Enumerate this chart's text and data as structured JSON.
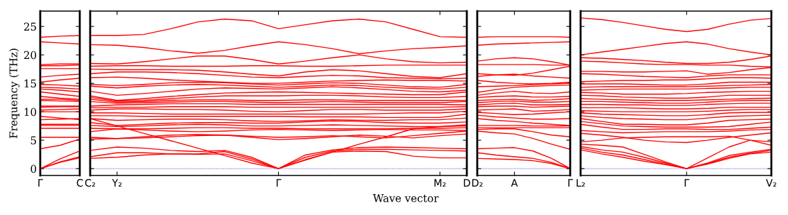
{
  "chart_data": [
    {
      "type": "line",
      "ylabel": "Frequency (THz)",
      "categories": [
        "Γ",
        null,
        "C"
      ],
      "ylim": [
        -1.2,
        27.7
      ],
      "yticks": [
        0,
        5,
        10,
        15,
        20,
        25
      ],
      "grid": false,
      "ref_lines": [
        {
          "axis": "y",
          "value": 0,
          "color": "#0000ff",
          "line_style": "dotted"
        }
      ],
      "series": [
        {
          "color": "#ff0000",
          "values": [
            23.1,
            23.3,
            23.4
          ]
        },
        {
          "color": "#ff0000",
          "values": [
            22.3,
            22.1,
            21.9
          ]
        },
        {
          "color": "#ff0000",
          "values": [
            18.3,
            18.4,
            18.4
          ]
        },
        {
          "color": "#ff0000",
          "values": [
            18.1,
            18.1,
            18.2
          ]
        },
        {
          "color": "#ff0000",
          "values": [
            17.6,
            17.6,
            17.6
          ]
        },
        {
          "color": "#ff0000",
          "values": [
            16.1,
            16.4,
            16.6
          ]
        },
        {
          "color": "#ff0000",
          "values": [
            15.2,
            15.6,
            15.9
          ]
        },
        {
          "color": "#ff0000",
          "values": [
            14.8,
            14.7,
            14.5
          ]
        },
        {
          "color": "#ff0000",
          "values": [
            14.3,
            14.2,
            14.0
          ]
        },
        {
          "color": "#ff0000",
          "values": [
            14.0,
            13.8,
            13.5
          ]
        },
        {
          "color": "#ff0000",
          "values": [
            13.5,
            13.1,
            12.7
          ]
        },
        {
          "color": "#ff0000",
          "values": [
            12.7,
            12.4,
            12.2
          ]
        },
        {
          "color": "#ff0000",
          "values": [
            12.2,
            12.2,
            12.0
          ]
        },
        {
          "color": "#ff0000",
          "values": [
            12.0,
            11.9,
            11.8
          ]
        },
        {
          "color": "#ff0000",
          "values": [
            11.0,
            11.0,
            11.0
          ]
        },
        {
          "color": "#ff0000",
          "values": [
            10.8,
            10.9,
            10.9
          ]
        },
        {
          "color": "#ff0000",
          "values": [
            10.3,
            10.4,
            10.5
          ]
        },
        {
          "color": "#ff0000",
          "values": [
            10.0,
            10.0,
            10.0
          ]
        },
        {
          "color": "#ff0000",
          "values": [
            9.2,
            8.9,
            8.6
          ]
        },
        {
          "color": "#ff0000",
          "values": [
            8.6,
            8.7,
            8.8
          ]
        },
        {
          "color": "#ff0000",
          "values": [
            7.8,
            7.8,
            7.8
          ]
        },
        {
          "color": "#ff0000",
          "values": [
            7.6,
            7.6,
            7.6
          ]
        },
        {
          "color": "#ff0000",
          "values": [
            7.1,
            7.1,
            7.1
          ]
        },
        {
          "color": "#ff0000",
          "values": [
            5.5,
            5.5,
            5.5
          ]
        },
        {
          "color": "#ff0000",
          "values": [
            3.5,
            4.1,
            5.2
          ]
        },
        {
          "color": "#ff0000",
          "values": [
            0,
            1.7,
            3.1
          ]
        },
        {
          "color": "#ff0000",
          "values": [
            0,
            1.2,
            2.1
          ]
        },
        {
          "color": "#ff0000",
          "values": [
            0,
            1.1,
            1.9
          ]
        }
      ]
    },
    {
      "type": "line",
      "xlabel": "Wave vector",
      "categories": [
        "C₂",
        "Y₂",
        null,
        null,
        null,
        null,
        null,
        "Γ",
        null,
        null,
        null,
        null,
        null,
        "M₂",
        "D"
      ],
      "ylim": [
        -1.2,
        27.7
      ],
      "yticks": [
        0,
        5,
        10,
        15,
        20,
        25
      ],
      "tick_labels": "x",
      "grid": false,
      "ref_lines": [
        {
          "axis": "y",
          "value": 0,
          "color": "#0000ff",
          "line_style": "dotted"
        }
      ],
      "series": [
        {
          "color": "#ff0000",
          "values": [
            23.4,
            23.4,
            23.6,
            24.6,
            25.8,
            26.3,
            26.0,
            24.6,
            25.3,
            26.0,
            26.3,
            25.8,
            24.5,
            23.2,
            23.1
          ]
        },
        {
          "color": "#ff0000",
          "values": [
            21.8,
            21.7,
            21.3,
            20.7,
            20.3,
            20.8,
            21.6,
            22.3,
            21.8,
            21.1,
            20.2,
            20.7,
            21.1,
            21.3,
            21.6
          ]
        },
        {
          "color": "#ff0000",
          "values": [
            18.5,
            18.4,
            18.8,
            19.3,
            19.8,
            19.8,
            19.2,
            18.4,
            18.9,
            19.5,
            20.0,
            19.3,
            18.8,
            18.6,
            18.7
          ]
        },
        {
          "color": "#ff0000",
          "values": [
            18.0,
            18.1,
            18.1,
            18.0,
            18.0,
            18.0,
            18.1,
            18.1,
            18.0,
            18.0,
            18.1,
            18.2,
            18.2,
            18.2,
            18.2
          ]
        },
        {
          "color": "#ff0000",
          "values": [
            17.5,
            17.4,
            17.4,
            17.4,
            17.3,
            17.0,
            16.6,
            16.3,
            17.0,
            17.4,
            17.2,
            16.7,
            16.2,
            16.0,
            16.7
          ]
        },
        {
          "color": "#ff0000",
          "values": [
            16.7,
            17.0,
            17.0,
            16.9,
            16.7,
            16.4,
            16.1,
            16.0,
            16.2,
            16.4,
            16.3,
            16.0,
            15.9,
            15.8,
            15.9
          ]
        },
        {
          "color": "#ff0000",
          "values": [
            16.0,
            16.1,
            15.9,
            15.6,
            15.4,
            15.2,
            15.0,
            15.0,
            15.2,
            15.4,
            15.5,
            15.6,
            15.5,
            15.5,
            15.4
          ]
        },
        {
          "color": "#ff0000",
          "values": [
            14.8,
            14.6,
            14.8,
            15.1,
            15.2,
            15.1,
            14.9,
            14.7,
            14.9,
            15.1,
            15.0,
            14.7,
            14.4,
            14.3,
            14.8
          ]
        },
        {
          "color": "#ff0000",
          "values": [
            14.5,
            14.2,
            14.5,
            14.7,
            14.8,
            14.7,
            14.5,
            14.3,
            14.5,
            14.7,
            14.6,
            14.3,
            14.1,
            14.0,
            14.3
          ]
        },
        {
          "color": "#ff0000",
          "values": [
            13.6,
            12.9,
            13.2,
            13.6,
            14.0,
            14.2,
            14.1,
            14.0,
            14.2,
            14.4,
            14.2,
            13.9,
            13.6,
            13.5,
            13.8
          ]
        },
        {
          "color": "#ff0000",
          "values": [
            12.8,
            12.0,
            12.3,
            12.7,
            13.0,
            13.3,
            13.4,
            13.5,
            13.4,
            13.3,
            13.2,
            13.1,
            13.0,
            13.0,
            13.5
          ]
        },
        {
          "color": "#ff0000",
          "values": [
            12.5,
            11.9,
            12.0,
            12.3,
            12.6,
            12.8,
            12.8,
            12.8,
            12.9,
            12.9,
            12.8,
            12.6,
            12.5,
            12.5,
            12.7
          ]
        },
        {
          "color": "#ff0000",
          "values": [
            12.2,
            11.7,
            11.8,
            12.0,
            12.1,
            12.1,
            12.0,
            12.0,
            12.1,
            12.1,
            12.0,
            12.0,
            12.0,
            12.0,
            12.0
          ]
        },
        {
          "color": "#ff0000",
          "values": [
            11.8,
            11.5,
            11.6,
            11.7,
            11.8,
            11.8,
            11.7,
            11.6,
            11.7,
            11.8,
            11.7,
            11.6,
            11.6,
            11.6,
            11.8
          ]
        },
        {
          "color": "#ff0000",
          "values": [
            11.0,
            11.2,
            11.3,
            11.4,
            11.4,
            11.4,
            11.3,
            11.3,
            11.3,
            11.3,
            11.3,
            11.3,
            11.3,
            11.3,
            11.2
          ]
        },
        {
          "color": "#ff0000",
          "values": [
            10.7,
            10.8,
            10.8,
            10.9,
            10.9,
            10.9,
            10.8,
            10.8,
            10.8,
            10.8,
            10.8,
            10.8,
            10.8,
            10.8,
            10.9
          ]
        },
        {
          "color": "#ff0000",
          "values": [
            10.3,
            10.5,
            10.5,
            10.4,
            10.4,
            10.3,
            10.1,
            10.0,
            10.2,
            10.4,
            10.4,
            10.3,
            10.3,
            10.3,
            10.5
          ]
        },
        {
          "color": "#ff0000",
          "values": [
            9.8,
            9.8,
            9.7,
            9.6,
            9.6,
            9.6,
            9.6,
            9.6,
            9.6,
            9.6,
            9.6,
            9.7,
            9.8,
            9.8,
            10.1
          ]
        },
        {
          "color": "#ff0000",
          "values": [
            9.3,
            9.3,
            9.2,
            9.2,
            9.2,
            9.2,
            9.2,
            9.2,
            9.1,
            9.1,
            9.1,
            9.0,
            9.0,
            9.0,
            9.6
          ]
        },
        {
          "color": "#ff0000",
          "values": [
            8.8,
            8.5,
            8.6,
            8.7,
            8.7,
            8.6,
            8.4,
            8.3,
            8.4,
            8.6,
            8.5,
            8.5,
            8.6,
            8.6,
            8.9
          ]
        },
        {
          "color": "#ff0000",
          "values": [
            8.1,
            7.6,
            7.8,
            8.0,
            8.1,
            8.1,
            8.0,
            8.0,
            8.2,
            8.4,
            8.3,
            8.1,
            8.0,
            8.0,
            8.2
          ]
        },
        {
          "color": "#ff0000",
          "values": [
            7.6,
            7.4,
            7.5,
            7.7,
            7.8,
            7.7,
            7.5,
            7.5,
            7.6,
            7.7,
            7.6,
            7.5,
            7.4,
            7.4,
            7.5
          ]
        },
        {
          "color": "#ff0000",
          "values": [
            7.1,
            7.0,
            7.0,
            7.1,
            7.2,
            7.2,
            7.1,
            7.1,
            7.0,
            7.0,
            7.0,
            7.0,
            7.1,
            7.1,
            7.2
          ]
        },
        {
          "color": "#ff0000",
          "values": [
            6.5,
            7.0,
            6.8,
            6.6,
            6.5,
            6.6,
            6.8,
            6.9,
            6.8,
            6.7,
            6.8,
            6.9,
            6.8,
            6.8,
            6.7
          ]
        },
        {
          "color": "#ff0000",
          "values": [
            5.5,
            5.3,
            5.4,
            5.6,
            5.8,
            5.9,
            5.7,
            5.5,
            5.6,
            5.8,
            5.6,
            5.4,
            5.8,
            6.2,
            6.6
          ]
        },
        {
          "color": "#ff0000",
          "values": [
            5.2,
            5.3,
            5.6,
            5.9,
            6.0,
            5.9,
            5.5,
            5.1,
            5.3,
            5.6,
            5.9,
            5.7,
            5.4,
            5.8,
            6.1
          ]
        },
        {
          "color": "#ff0000",
          "values": [
            8.8,
            7.5,
            6.2,
            4.9,
            3.6,
            2.3,
            1.0,
            0,
            1.5,
            2.9,
            4.3,
            5.6,
            7.0,
            7.4,
            7.7
          ]
        },
        {
          "color": "#ff0000",
          "values": [
            3.2,
            3.8,
            3.6,
            3.2,
            3.0,
            3.2,
            2.0,
            0,
            2.4,
            3.3,
            3.7,
            3.8,
            3.7,
            3.6,
            3.5
          ]
        },
        {
          "color": "#ff0000",
          "values": [
            2.1,
            2.8,
            2.8,
            2.6,
            2.6,
            3.0,
            1.7,
            0,
            2.0,
            3.1,
            3.4,
            3.4,
            3.3,
            3.2,
            3.1
          ]
        },
        {
          "color": "#ff0000",
          "values": [
            1.8,
            2.0,
            2.4,
            2.6,
            2.5,
            2.6,
            1.4,
            0,
            1.6,
            2.9,
            3.1,
            3.0,
            2.2,
            1.9,
            1.9
          ]
        }
      ]
    },
    {
      "type": "line",
      "categories": [
        "D₂",
        null,
        "A",
        null,
        null,
        "Γ"
      ],
      "ylim": [
        -1.2,
        27.7
      ],
      "yticks": [
        0,
        5,
        10,
        15,
        20,
        25
      ],
      "tick_labels": "x",
      "grid": false,
      "ref_lines": [
        {
          "axis": "y",
          "value": 0,
          "color": "#0000ff",
          "line_style": "dotted"
        }
      ],
      "series": [
        {
          "color": "#ff0000",
          "values": [
            23.1,
            23.2,
            23.2,
            23.2,
            23.2,
            23.1
          ]
        },
        {
          "color": "#ff0000",
          "values": [
            21.7,
            21.9,
            22.0,
            22.1,
            22.2,
            22.3
          ]
        },
        {
          "color": "#ff0000",
          "values": [
            18.9,
            19.3,
            19.5,
            19.3,
            18.8,
            18.2
          ]
        },
        {
          "color": "#ff0000",
          "values": [
            18.3,
            18.3,
            18.3,
            18.3,
            18.2,
            18.2
          ]
        },
        {
          "color": "#ff0000",
          "values": [
            16.7,
            16.5,
            16.4,
            16.8,
            17.4,
            18.0
          ]
        },
        {
          "color": "#ff0000",
          "values": [
            16.2,
            16.5,
            16.6,
            16.3,
            16.1,
            15.9
          ]
        },
        {
          "color": "#ff0000",
          "values": [
            15.5,
            15.2,
            15.0,
            14.9,
            15.0,
            15.2
          ]
        },
        {
          "color": "#ff0000",
          "values": [
            14.4,
            14.5,
            14.6,
            14.8,
            14.9,
            15.0
          ]
        },
        {
          "color": "#ff0000",
          "values": [
            13.4,
            13.9,
            14.3,
            14.5,
            14.6,
            14.7
          ]
        },
        {
          "color": "#ff0000",
          "values": [
            12.9,
            13.3,
            13.6,
            13.3,
            13.2,
            13.5
          ]
        },
        {
          "color": "#ff0000",
          "values": [
            12.5,
            12.7,
            12.8,
            12.6,
            12.6,
            12.7
          ]
        },
        {
          "color": "#ff0000",
          "values": [
            12.0,
            12.1,
            12.2,
            12.0,
            12.1,
            12.3
          ]
        },
        {
          "color": "#ff0000",
          "values": [
            11.6,
            11.8,
            11.9,
            11.7,
            11.7,
            11.8
          ]
        },
        {
          "color": "#ff0000",
          "values": [
            11.2,
            11.4,
            11.5,
            11.2,
            11.2,
            11.3
          ]
        },
        {
          "color": "#ff0000",
          "values": [
            10.9,
            11.0,
            11.0,
            10.8,
            10.9,
            11.0
          ]
        },
        {
          "color": "#ff0000",
          "values": [
            10.3,
            10.4,
            10.5,
            10.1,
            10.2,
            10.4
          ]
        },
        {
          "color": "#ff0000",
          "values": [
            9.9,
            9.7,
            9.5,
            9.6,
            9.8,
            10.0
          ]
        },
        {
          "color": "#ff0000",
          "values": [
            9.4,
            9.1,
            8.9,
            8.7,
            8.7,
            8.8
          ]
        },
        {
          "color": "#ff0000",
          "values": [
            8.8,
            8.5,
            8.3,
            8.0,
            7.8,
            7.6
          ]
        },
        {
          "color": "#ff0000",
          "values": [
            7.6,
            7.6,
            7.6,
            7.5,
            7.5,
            7.5
          ]
        },
        {
          "color": "#ff0000",
          "values": [
            7.2,
            7.2,
            7.2,
            7.2,
            7.2,
            7.2
          ]
        },
        {
          "color": "#ff0000",
          "values": [
            6.9,
            7.0,
            7.0,
            6.5,
            5.9,
            5.6
          ]
        },
        {
          "color": "#ff0000",
          "values": [
            6.6,
            6.3,
            6.1,
            5.3,
            4.3,
            3.4
          ]
        },
        {
          "color": "#ff0000",
          "values": [
            3.5,
            3.6,
            3.7,
            3.1,
            1.8,
            0
          ]
        },
        {
          "color": "#ff0000",
          "values": [
            2.8,
            2.4,
            2.1,
            1.8,
            1.1,
            0
          ]
        },
        {
          "color": "#ff0000",
          "values": [
            1.8,
            1.7,
            1.6,
            1.4,
            0.9,
            0
          ]
        }
      ]
    },
    {
      "type": "line",
      "categories": [
        "L₂",
        null,
        null,
        null,
        null,
        "Γ",
        null,
        null,
        null,
        "V₂"
      ],
      "ylim": [
        -1.2,
        27.7
      ],
      "yticks": [
        0,
        5,
        10,
        15,
        20,
        25
      ],
      "tick_labels": "x",
      "grid": false,
      "ref_lines": [
        {
          "axis": "y",
          "value": 0,
          "color": "#0000ff",
          "line_style": "dotted"
        }
      ],
      "series": [
        {
          "color": "#ff0000",
          "values": [
            26.5,
            26.2,
            25.7,
            25.1,
            24.5,
            24.1,
            24.5,
            25.4,
            26.1,
            26.4
          ]
        },
        {
          "color": "#ff0000",
          "values": [
            20.0,
            20.5,
            21.0,
            21.5,
            22.0,
            22.3,
            21.9,
            21.1,
            20.5,
            20.0
          ]
        },
        {
          "color": "#ff0000",
          "values": [
            19.5,
            19.4,
            19.2,
            19.0,
            18.7,
            18.5,
            18.5,
            18.7,
            19.2,
            19.8
          ]
        },
        {
          "color": "#ff0000",
          "values": [
            18.9,
            18.8,
            18.6,
            18.4,
            18.3,
            18.3,
            18.2,
            18.2,
            18.0,
            17.9
          ]
        },
        {
          "color": "#ff0000",
          "values": [
            17.1,
            17.1,
            17.0,
            17.0,
            17.1,
            17.2,
            16.6,
            16.9,
            17.4,
            17.8
          ]
        },
        {
          "color": "#ff0000",
          "values": [
            16.7,
            16.6,
            16.4,
            16.2,
            16.1,
            16.0,
            16.3,
            16.5,
            16.5,
            16.5
          ]
        },
        {
          "color": "#ff0000",
          "values": [
            15.3,
            15.4,
            15.5,
            15.5,
            15.6,
            15.6,
            15.8,
            16.0,
            16.0,
            15.9
          ]
        },
        {
          "color": "#ff0000",
          "values": [
            14.9,
            14.9,
            14.9,
            14.8,
            14.7,
            14.7,
            14.9,
            15.2,
            15.2,
            15.2
          ]
        },
        {
          "color": "#ff0000",
          "values": [
            14.3,
            14.4,
            14.4,
            14.4,
            14.4,
            14.4,
            14.5,
            14.6,
            14.7,
            14.8
          ]
        },
        {
          "color": "#ff0000",
          "values": [
            13.8,
            13.9,
            14.0,
            14.0,
            14.0,
            14.0,
            14.1,
            14.2,
            14.3,
            14.3
          ]
        },
        {
          "color": "#ff0000",
          "values": [
            13.4,
            13.3,
            13.1,
            13.1,
            13.1,
            13.2,
            13.4,
            13.5,
            13.6,
            13.6
          ]
        },
        {
          "color": "#ff0000",
          "values": [
            12.9,
            12.8,
            12.6,
            12.5,
            12.4,
            12.4,
            12.6,
            12.9,
            12.9,
            12.9
          ]
        },
        {
          "color": "#ff0000",
          "values": [
            12.3,
            12.2,
            12.1,
            12.0,
            12.0,
            12.0,
            12.1,
            12.2,
            12.3,
            12.4
          ]
        },
        {
          "color": "#ff0000",
          "values": [
            11.8,
            11.8,
            11.7,
            11.6,
            11.5,
            11.5,
            11.7,
            11.9,
            12.0,
            12.0
          ]
        },
        {
          "color": "#ff0000",
          "values": [
            11.3,
            11.3,
            11.2,
            11.2,
            11.1,
            11.1,
            11.3,
            11.4,
            11.5,
            11.5
          ]
        },
        {
          "color": "#ff0000",
          "values": [
            10.7,
            10.7,
            10.7,
            10.6,
            10.5,
            10.5,
            10.6,
            10.8,
            10.8,
            10.8
          ]
        },
        {
          "color": "#ff0000",
          "values": [
            10.2,
            10.1,
            10.0,
            10.0,
            10.0,
            10.0,
            10.1,
            10.3,
            10.4,
            10.4
          ]
        },
        {
          "color": "#ff0000",
          "values": [
            9.8,
            9.6,
            9.5,
            9.4,
            9.3,
            9.3,
            9.5,
            9.8,
            9.9,
            9.9
          ]
        },
        {
          "color": "#ff0000",
          "values": [
            9.3,
            9.0,
            8.8,
            8.7,
            8.6,
            8.6,
            8.9,
            9.2,
            9.3,
            9.4
          ]
        },
        {
          "color": "#ff0000",
          "values": [
            8.8,
            8.3,
            7.8,
            7.8,
            7.7,
            7.7,
            8.0,
            8.5,
            8.6,
            8.7
          ]
        },
        {
          "color": "#ff0000",
          "values": [
            8.3,
            7.9,
            7.5,
            7.4,
            7.3,
            7.3,
            7.3,
            7.4,
            7.8,
            8.2
          ]
        },
        {
          "color": "#ff0000",
          "values": [
            7.8,
            7.3,
            6.9,
            6.9,
            7.0,
            7.0,
            6.9,
            6.9,
            7.1,
            7.3
          ]
        },
        {
          "color": "#ff0000",
          "values": [
            6.7,
            6.5,
            6.3,
            6.4,
            6.5,
            6.5,
            6.5,
            6.6,
            6.8,
            6.9
          ]
        },
        {
          "color": "#ff0000",
          "values": [
            6.2,
            5.9,
            5.5,
            5.0,
            4.7,
            4.6,
            5.0,
            5.5,
            5.9,
            6.3
          ]
        },
        {
          "color": "#ff0000",
          "values": [
            4.7,
            5.0,
            5.4,
            5.5,
            5.6,
            5.6,
            5.6,
            5.7,
            5.0,
            4.7
          ]
        },
        {
          "color": "#ff0000",
          "values": [
            4.3,
            4.1,
            3.8,
            2.5,
            1.2,
            0,
            1.9,
            3.8,
            5.0,
            4.1
          ]
        },
        {
          "color": "#ff0000",
          "values": [
            3.9,
            3.3,
            2.9,
            2.0,
            1.0,
            0,
            1.0,
            2.3,
            2.9,
            3.4
          ]
        },
        {
          "color": "#ff0000",
          "values": [
            3.6,
            2.9,
            2.4,
            1.6,
            0.8,
            0,
            0.9,
            2.0,
            2.7,
            3.2
          ]
        },
        {
          "color": "#ff0000",
          "values": [
            3.3,
            2.6,
            2.0,
            1.3,
            0.7,
            0,
            0.8,
            1.8,
            2.6,
            2.9
          ]
        }
      ]
    }
  ]
}
